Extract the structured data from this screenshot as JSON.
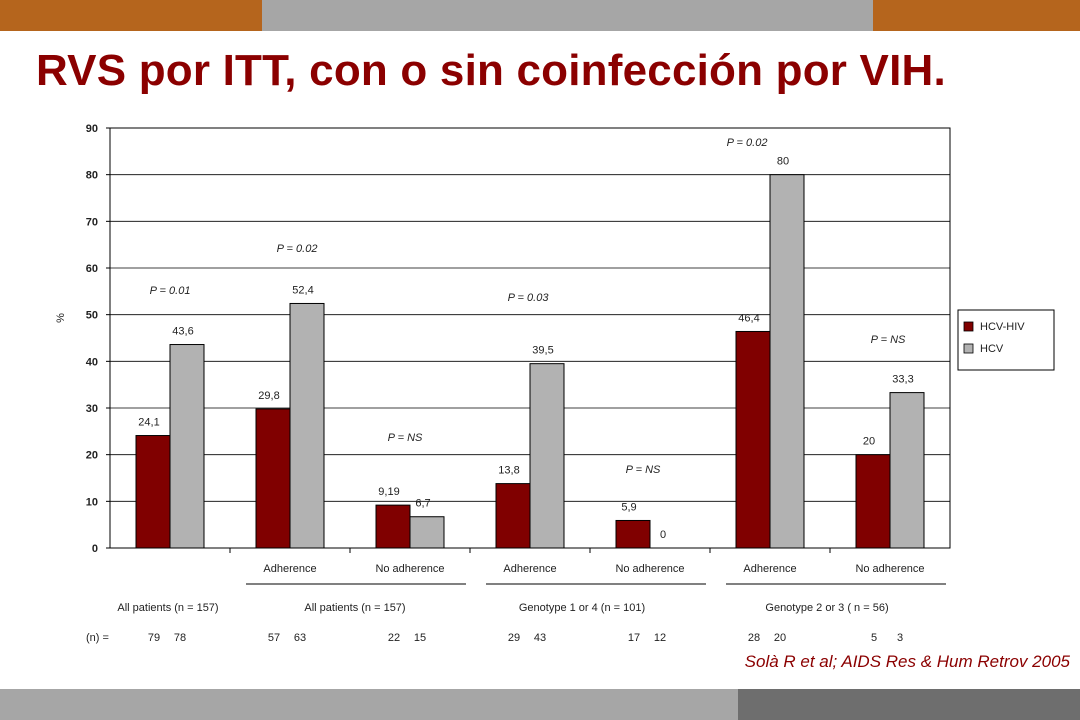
{
  "slide": {
    "title": "RVS por ITT, con o sin coinfección por VIH.",
    "citation": "Solà R et al; AIDS Res & Hum Retrov 2005",
    "colors": {
      "title": "#8b0000",
      "top_band_left": "#b5651d",
      "top_band_mid": "#a6a6a6",
      "top_band_right": "#b5651d",
      "bottom_band_light": "#a6a6a6",
      "bottom_band_dark": "#6e6e6e"
    }
  },
  "chart_data": {
    "type": "bar",
    "ylabel": "%",
    "ylim": [
      0,
      90
    ],
    "yticks": [
      0,
      10,
      20,
      30,
      40,
      50,
      60,
      70,
      80,
      90
    ],
    "grid": true,
    "legend_position": "right",
    "series": [
      {
        "name": "HCV-HIV",
        "color": "#800000",
        "values": [
          24.1,
          29.8,
          9.19,
          13.8,
          5.9,
          46.4,
          20
        ],
        "labels": [
          "24,1",
          "29,8",
          "9,19",
          "13,8",
          "5,9",
          "46,4",
          "20"
        ]
      },
      {
        "name": "HCV",
        "color": "#b2b2b2",
        "values": [
          43.6,
          52.4,
          6.7,
          39.5,
          0,
          80,
          33.3
        ],
        "labels": [
          "43,6",
          "52,4",
          "6,7",
          "39,5",
          "0",
          "80",
          "33,3"
        ]
      }
    ],
    "categories": [
      "",
      "Adherence",
      "No adherence",
      "Adherence",
      "No adherence",
      "Adherence",
      "No adherence"
    ],
    "p_values": [
      "P = 0.01",
      "P =  0.02",
      "P = NS",
      "P =  0.03",
      "P = NS",
      "P = 0.02",
      "P = NS"
    ],
    "groups": [
      {
        "label": "All patients (n = 157)"
      },
      {
        "label": "All patients (n = 157)"
      },
      {
        "label": "Genotype 1 or 4 (n = 101)"
      },
      {
        "label": "Genotype 2 or 3 ( n = 56)"
      }
    ],
    "n_row": {
      "label": "(n) =",
      "pairs": [
        [
          "79",
          "78"
        ],
        [
          "57",
          "63"
        ],
        [
          "22",
          "15"
        ],
        [
          "29",
          "43"
        ],
        [
          "17",
          "12"
        ],
        [
          "28",
          "20"
        ],
        [
          "5",
          "3"
        ]
      ]
    }
  }
}
